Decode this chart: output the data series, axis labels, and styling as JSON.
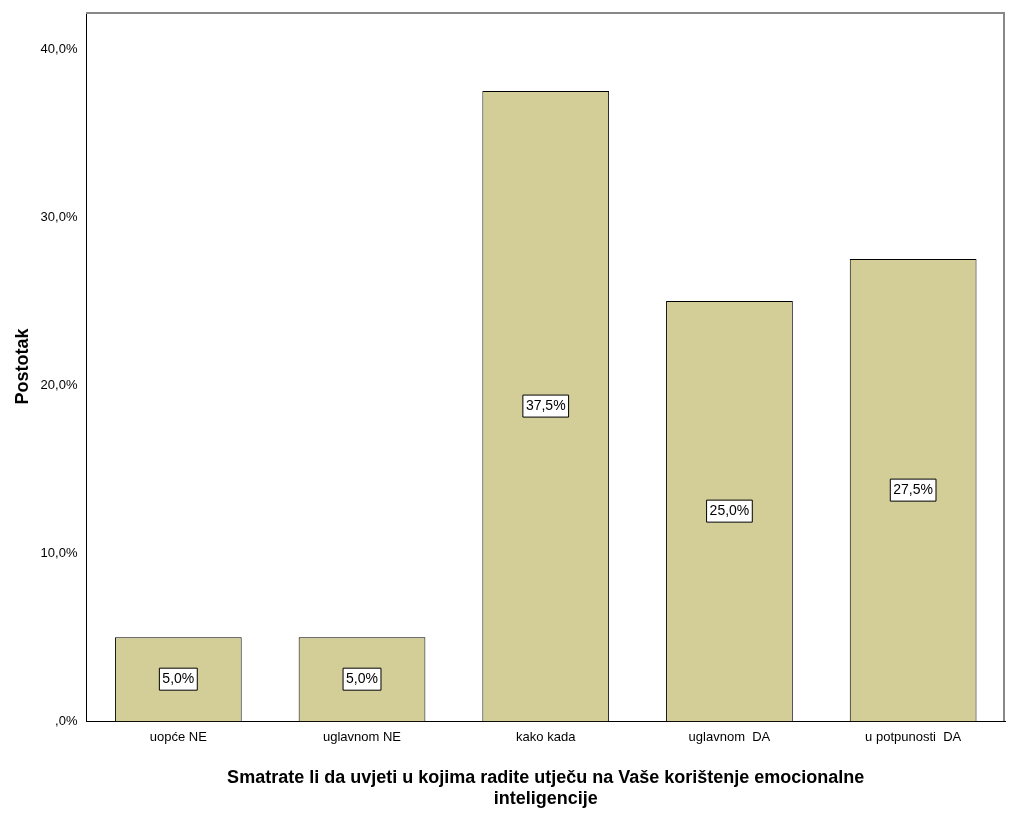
{
  "chart_data": {
    "type": "bar",
    "xlabel": "Smatrate li da uvjeti u kojima radite utječu na Vaše korištenje emocionalne inteligencije",
    "ylabel": "Postotak",
    "categories": [
      "uopće NE",
      "uglavnom NE",
      "kako kada",
      "uglavnom  DA",
      "u potpunosti  DA"
    ],
    "values": [
      5.0,
      5.0,
      37.5,
      25.0,
      27.5
    ],
    "value_labels": [
      "5,0%",
      "5,0%",
      "37,5%",
      "25,0%",
      "27,5%"
    ],
    "color": "#d3ce98",
    "ylim": [
      0,
      42.2
    ],
    "yticks": [
      {
        "value": 0,
        "label": ",0%"
      },
      {
        "value": 10,
        "label": "10,0%"
      },
      {
        "value": 20,
        "label": "20,0%"
      },
      {
        "value": 30,
        "label": "30,0%"
      },
      {
        "value": 40,
        "label": "40,0%"
      }
    ],
    "grid": false,
    "legend": false
  }
}
